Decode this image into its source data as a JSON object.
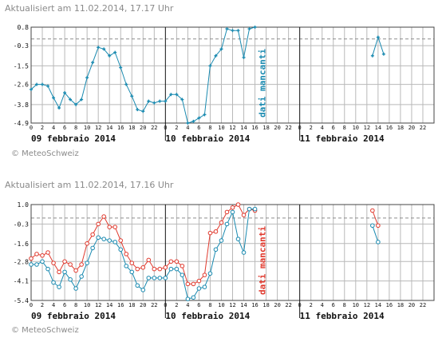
{
  "charts": [
    {
      "header": "Aktualisiert am 11.02.2014, 17.17 Uhr",
      "copyright": "© MeteoSchweiz",
      "missing_label": "dati mancanti",
      "day_labels": [
        "09 febbraio 2014",
        "10 febbraio 2014",
        "11 febbraio 2014"
      ],
      "hour_labels": [
        "0",
        "2",
        "4",
        "6",
        "8",
        "10",
        "12",
        "14",
        "16",
        "18",
        "20",
        "22"
      ]
    },
    {
      "header": "Aktualisiert am 11.02.2014, 17.16 Uhr",
      "copyright": "© MeteoSchweiz",
      "missing_label": "dati mancanti",
      "day_labels": [
        "09 febbraio 2014",
        "10 febbraio 2014",
        "11 febbraio 2014"
      ],
      "hour_labels": [
        "0",
        "2",
        "4",
        "6",
        "8",
        "10",
        "12",
        "14",
        "16",
        "18",
        "20",
        "22"
      ]
    }
  ],
  "chart_data": [
    {
      "type": "line",
      "x_unit": "hours since 09.02.2014 00:00",
      "xlim": [
        0,
        72
      ],
      "ylim": [
        -4.9,
        0.8
      ],
      "yticks": [
        0.8,
        -0.3,
        -1.5,
        -2.6,
        -3.8,
        -4.9
      ],
      "ytick_labels": [
        "0.8",
        "-0.3",
        "-1.5",
        "-2.6",
        "-3.8",
        "-4.9"
      ],
      "dashed_reference": 0.1,
      "grid": true,
      "colors": {
        "series": "#1a8ab0",
        "missing_label": "#1a8ab0"
      },
      "series": [
        {
          "color": "#1a8ab0",
          "marker": "plus",
          "x": [
            0,
            1,
            2,
            3,
            4,
            5,
            6,
            7,
            8,
            9,
            10,
            11,
            12,
            13,
            14,
            15,
            16,
            17,
            18,
            19,
            20,
            21,
            22,
            23,
            24,
            25,
            26,
            27,
            28,
            29,
            30,
            31,
            32,
            33,
            34,
            35,
            36,
            37,
            38,
            39,
            40
          ],
          "y": [
            -2.9,
            -2.6,
            -2.6,
            -2.7,
            -3.4,
            -4.0,
            -3.1,
            -3.5,
            -3.8,
            -3.5,
            -2.2,
            -1.3,
            -0.4,
            -0.5,
            -0.9,
            -0.7,
            -1.6,
            -2.6,
            -3.3,
            -4.1,
            -4.2,
            -3.6,
            -3.7,
            -3.6,
            -3.6,
            -3.2,
            -3.2,
            -3.5,
            -4.9,
            -4.8,
            -4.6,
            -4.4,
            -1.5,
            -0.9,
            -0.5,
            0.7,
            0.6,
            0.6,
            -1.0,
            0.7,
            0.8
          ]
        },
        {
          "color": "#1a8ab0",
          "marker": "plus",
          "x": [
            61,
            62,
            63
          ],
          "y": [
            -0.9,
            0.2,
            -0.8
          ]
        }
      ]
    },
    {
      "type": "line",
      "x_unit": "hours since 09.02.2014 00:00",
      "xlim": [
        0,
        72
      ],
      "ylim": [
        -5.4,
        1.0
      ],
      "yticks": [
        1.0,
        -0.3,
        -1.6,
        -2.8,
        -4.1,
        -5.4
      ],
      "ytick_labels": [
        "1.0",
        "-0.3",
        "-1.6",
        "-2.8",
        "-4.1",
        "-5.4"
      ],
      "dashed_reference": 0.1,
      "grid": true,
      "colors": {
        "missing_label": "#e03a2e"
      },
      "series": [
        {
          "color": "#e03a2e",
          "marker": "circle",
          "x": [
            0,
            1,
            2,
            3,
            4,
            5,
            6,
            7,
            8,
            9,
            10,
            11,
            12,
            13,
            14,
            15,
            16,
            17,
            18,
            19,
            20,
            21,
            22,
            23,
            24,
            25,
            26,
            27,
            28,
            29,
            30,
            31,
            32,
            33,
            34,
            35,
            36,
            37,
            38,
            39,
            40
          ],
          "y": [
            -2.6,
            -2.3,
            -2.4,
            -2.2,
            -2.9,
            -3.5,
            -2.8,
            -3.0,
            -3.4,
            -3.0,
            -1.6,
            -1.0,
            -0.3,
            0.2,
            -0.5,
            -0.5,
            -1.4,
            -2.3,
            -2.9,
            -3.3,
            -3.2,
            -2.7,
            -3.3,
            -3.3,
            -3.2,
            -2.8,
            -2.8,
            -3.1,
            -4.3,
            -4.3,
            -4.1,
            -3.7,
            -0.9,
            -0.8,
            -0.2,
            0.5,
            0.8,
            1.0,
            0.3,
            0.7,
            0.6
          ]
        },
        {
          "color": "#e03a2e",
          "marker": "circle",
          "x": [
            61,
            62
          ],
          "y": [
            0.6,
            -0.4
          ]
        },
        {
          "color": "#1a8ab0",
          "marker": "circle",
          "x": [
            0,
            1,
            2,
            3,
            4,
            5,
            6,
            7,
            8,
            9,
            10,
            11,
            12,
            13,
            14,
            15,
            16,
            17,
            18,
            19,
            20,
            21,
            22,
            23,
            24,
            25,
            26,
            27,
            28,
            29,
            30,
            31,
            32,
            33,
            34,
            35,
            36,
            37,
            38,
            39,
            40
          ],
          "y": [
            -3.0,
            -3.0,
            -2.8,
            -3.3,
            -4.2,
            -4.5,
            -3.5,
            -4.0,
            -4.6,
            -3.8,
            -2.9,
            -1.9,
            -1.2,
            -1.3,
            -1.4,
            -1.5,
            -2.0,
            -3.1,
            -3.5,
            -4.4,
            -4.7,
            -3.9,
            -3.9,
            -3.9,
            -3.9,
            -3.3,
            -3.3,
            -3.7,
            -5.3,
            -5.2,
            -4.6,
            -4.5,
            -3.6,
            -2.0,
            -1.4,
            -0.3,
            0.5,
            -1.3,
            -2.2,
            0.7,
            0.7
          ]
        },
        {
          "color": "#1a8ab0",
          "marker": "circle",
          "x": [
            61,
            62
          ],
          "y": [
            -0.4,
            -1.5
          ]
        }
      ]
    }
  ]
}
